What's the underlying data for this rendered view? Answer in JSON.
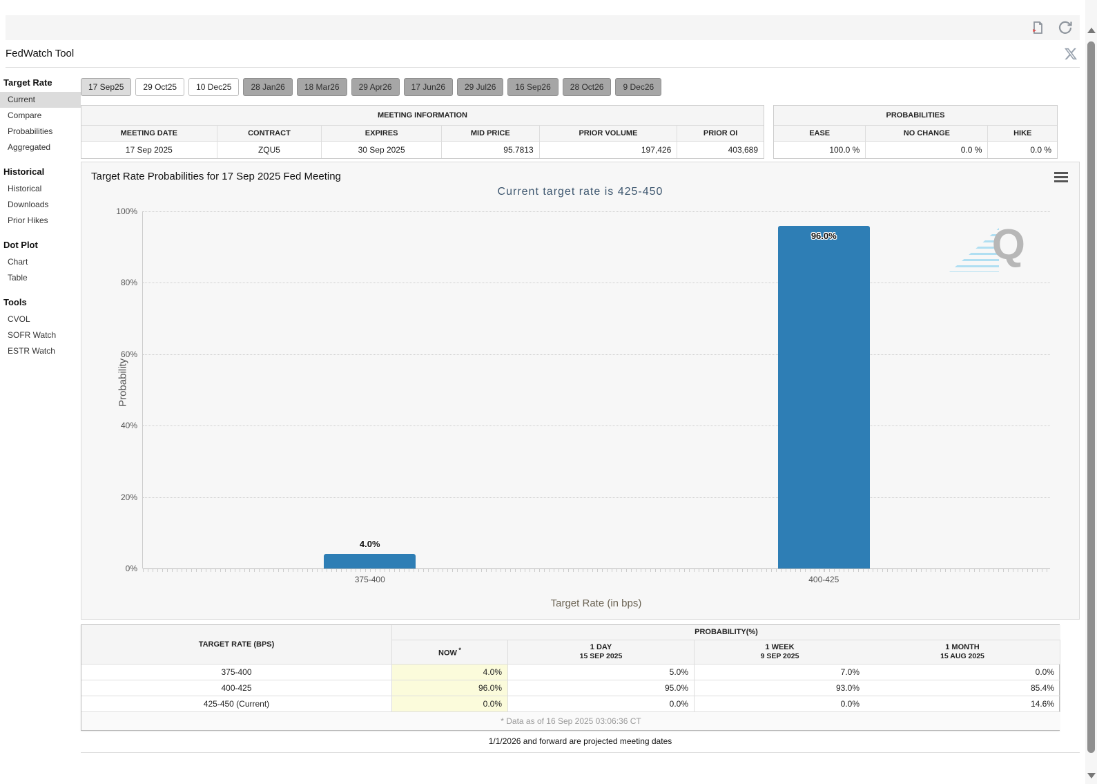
{
  "header": {
    "title": "FedWatch Tool",
    "export_icon": "export-document-icon",
    "refresh_icon": "refresh-icon",
    "x_icon": "x-social-icon"
  },
  "sidebar": {
    "sections": [
      {
        "title": "Target Rate",
        "items": [
          {
            "label": "Current",
            "selected": true
          },
          {
            "label": "Compare"
          },
          {
            "label": "Probabilities"
          },
          {
            "label": "Aggregated"
          }
        ]
      },
      {
        "title": "Historical",
        "items": [
          {
            "label": "Historical"
          },
          {
            "label": "Downloads"
          },
          {
            "label": "Prior Hikes"
          }
        ]
      },
      {
        "title": "Dot Plot",
        "items": [
          {
            "label": "Chart"
          },
          {
            "label": "Table"
          }
        ]
      },
      {
        "title": "Tools",
        "items": [
          {
            "label": "CVOL"
          },
          {
            "label": "SOFR Watch"
          },
          {
            "label": "ESTR Watch"
          }
        ]
      }
    ]
  },
  "meeting_tabs": [
    {
      "label": "17 Sep25",
      "state": "selected"
    },
    {
      "label": "29 Oct25",
      "state": "near"
    },
    {
      "label": "10 Dec25",
      "state": "near"
    },
    {
      "label": "28 Jan26",
      "state": "far"
    },
    {
      "label": "18 Mar26",
      "state": "far"
    },
    {
      "label": "29 Apr26",
      "state": "far"
    },
    {
      "label": "17 Jun26",
      "state": "far"
    },
    {
      "label": "29 Jul26",
      "state": "far"
    },
    {
      "label": "16 Sep26",
      "state": "far"
    },
    {
      "label": "28 Oct26",
      "state": "far"
    },
    {
      "label": "9 Dec26",
      "state": "far"
    }
  ],
  "meeting_info": {
    "title": "MEETING INFORMATION",
    "columns": [
      "MEETING DATE",
      "CONTRACT",
      "EXPIRES",
      "MID PRICE",
      "PRIOR VOLUME",
      "PRIOR OI"
    ],
    "values": [
      "17 Sep 2025",
      "ZQU5",
      "30 Sep 2025",
      "95.7813",
      "197,426",
      "403,689"
    ]
  },
  "probabilities_summary": {
    "title": "PROBABILITIES",
    "columns": [
      "EASE",
      "NO CHANGE",
      "HIKE"
    ],
    "values": [
      "100.0 %",
      "0.0 %",
      "0.0 %"
    ]
  },
  "chart_heading": "Target Rate Probabilities for 17 Sep 2025 Fed Meeting",
  "chart_data": {
    "type": "bar",
    "title": "Current target rate is 425-450",
    "categories": [
      "375-400",
      "400-425"
    ],
    "values": [
      4.0,
      96.0
    ],
    "data_labels": [
      "4.0%",
      "96.0%"
    ],
    "xlabel": "Target Rate (in bps)",
    "ylabel": "Probability",
    "ylim": [
      0,
      100
    ],
    "yticks": [
      0,
      20,
      40,
      60,
      80,
      100
    ],
    "ytick_suffix": "%",
    "grid": "dotted horizontal",
    "legend": "none",
    "bar_color": "#2e7eb5",
    "watermark_letter": "Q"
  },
  "probability_table": {
    "rate_header": "TARGET RATE (BPS)",
    "group_header": "PROBABILITY(%)",
    "columns": [
      {
        "label": "NOW",
        "sup": "*",
        "sub": ""
      },
      {
        "label": "1 DAY",
        "sub": "15 SEP 2025"
      },
      {
        "label": "1 WEEK",
        "sub": "9 SEP 2025"
      },
      {
        "label": "1 MONTH",
        "sub": "15 AUG 2025"
      }
    ],
    "rows": [
      {
        "rate": "375-400",
        "values": [
          "4.0%",
          "5.0%",
          "7.0%",
          "0.0%"
        ]
      },
      {
        "rate": "400-425",
        "values": [
          "96.0%",
          "95.0%",
          "93.0%",
          "85.4%"
        ]
      },
      {
        "rate": "425-450 (Current)",
        "values": [
          "0.0%",
          "0.0%",
          "0.0%",
          "14.6%"
        ]
      }
    ],
    "footnote": "* Data as of 16 Sep 2025 03:06:36 CT"
  },
  "footer_note": "1/1/2026 and forward are projected meeting dates"
}
